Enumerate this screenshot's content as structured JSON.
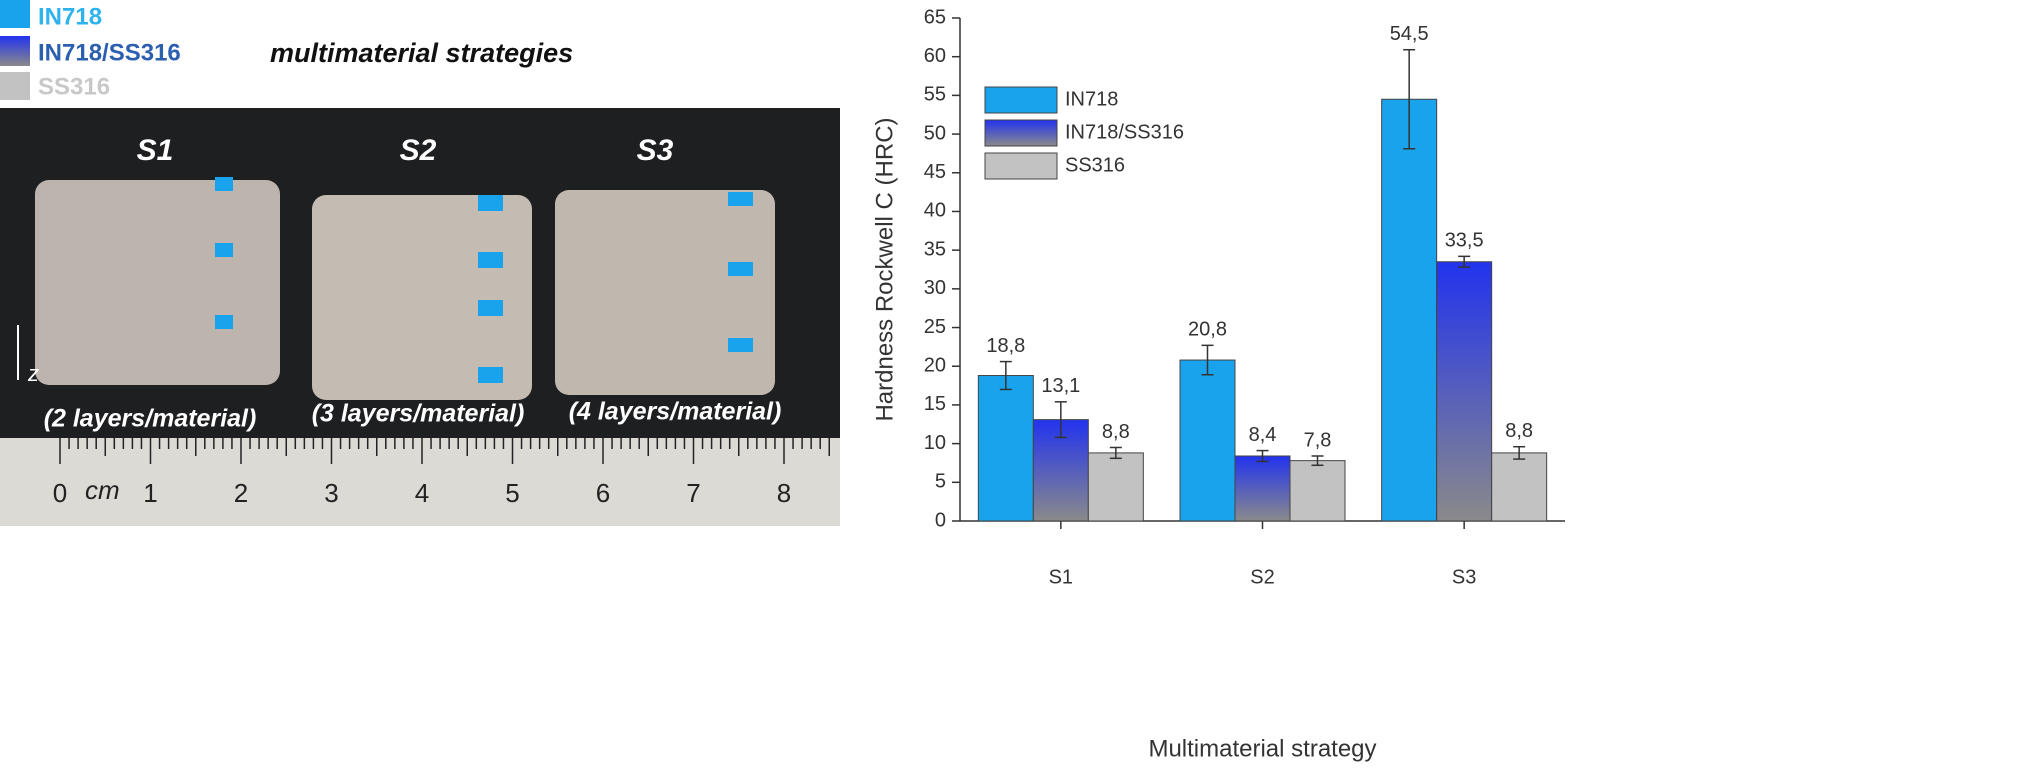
{
  "photo": {
    "legend": [
      "IN718",
      "IN718/SS316",
      "SS316"
    ],
    "caption": "multimaterial strategies",
    "samples": [
      {
        "name": "S1",
        "note": "(2 layers/material)"
      },
      {
        "name": "S2",
        "note": "(3 layers/material)"
      },
      {
        "name": "S3",
        "note": "(4 layers/material)"
      }
    ],
    "axis_label": "z",
    "ruler_unit": "cm",
    "ruler_numbers": [
      "0",
      "1",
      "2",
      "3",
      "4",
      "5",
      "6",
      "7",
      "8"
    ]
  },
  "chart_data": {
    "type": "bar",
    "categories": [
      "S1",
      "S2",
      "S3"
    ],
    "series": [
      {
        "name": "IN718",
        "color": "#19a3ec",
        "values": [
          18.8,
          20.8,
          54.5
        ],
        "value_labels": [
          "18,8",
          "20,8",
          "54,5"
        ],
        "errors": [
          1.8,
          1.9,
          6.4
        ]
      },
      {
        "name": "IN718/SS316",
        "color": "#2233ee",
        "gradient": [
          "#2233ee",
          "#8a8a8a"
        ],
        "values": [
          13.1,
          8.4,
          33.5
        ],
        "value_labels": [
          "13,1",
          "8,4",
          "33,5"
        ],
        "errors": [
          2.3,
          0.7,
          0.7
        ]
      },
      {
        "name": "SS316",
        "color": "#c2c2c2",
        "values": [
          8.8,
          7.8,
          8.8
        ],
        "value_labels": [
          "8,8",
          "7,8",
          "8,8"
        ],
        "errors": [
          0.7,
          0.6,
          0.8
        ]
      }
    ],
    "xlabel": "Multimaterial strategy",
    "ylabel": "Hardness Rockwell C (HRC)",
    "ylim": [
      0,
      65
    ],
    "yticks": [
      0,
      5,
      10,
      15,
      20,
      25,
      30,
      35,
      40,
      45,
      50,
      55,
      60,
      65
    ],
    "legend": "upper left"
  }
}
